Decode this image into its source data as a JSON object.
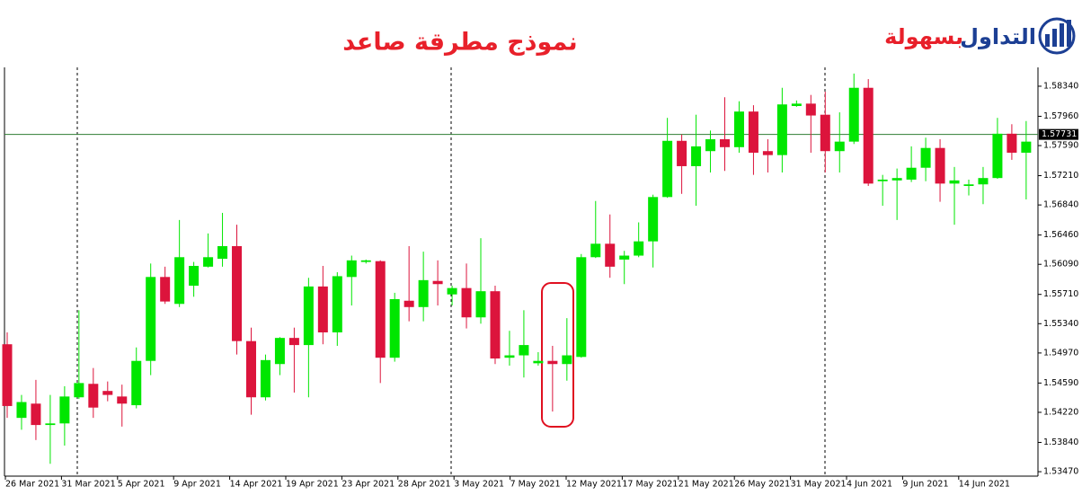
{
  "chart_data": {
    "type": "candlestick",
    "title": "نموذج مطرقة صاعد",
    "logo": {
      "part1": "التداول",
      "part2": "بسهولة"
    },
    "categories": [
      "26 Mar 2021",
      "31 Mar 2021",
      "5 Apr 2021",
      "9 Apr 2021",
      "14 Apr 2021",
      "19 Apr 2021",
      "23 Apr 2021",
      "28 Apr 2021",
      "3 May 2021",
      "7 May 2021",
      "12 May 2021",
      "17 May 2021",
      "21 May 2021",
      "26 May 2021",
      "31 May 2021",
      "4 Jun 2021",
      "9 Jun 2021",
      "14 Jun 2021"
    ],
    "up_color": "#00e600",
    "down_color": "#dc143c",
    "open": [
      1.5508,
      1.5415,
      1.5433,
      1.5406,
      1.5408,
      1.5441,
      1.5458,
      1.5449,
      1.5442,
      1.5431,
      1.5487,
      1.5593,
      1.5559,
      1.5582,
      1.5606,
      1.5616,
      1.5632,
      1.5512,
      1.5441,
      1.5483,
      1.5516,
      1.5507,
      1.5581,
      1.5523,
      1.5593,
      1.5612,
      1.5613,
      1.5491,
      1.5563,
      1.5555,
      1.5588,
      1.5571,
      1.5579,
      1.5542,
      1.5575,
      1.5491,
      1.5494,
      1.5484,
      1.5487,
      1.5483,
      1.5492,
      1.5618,
      1.5635,
      1.5615,
      1.562,
      1.5638,
      1.5694,
      1.5765,
      1.5733,
      1.5752,
      1.5767,
      1.5757,
      1.5802,
      1.5752,
      1.5747,
      1.5809,
      1.5812,
      1.5798,
      1.5752,
      1.5764,
      1.5832,
      1.5714,
      1.5715,
      1.5716,
      1.5731,
      1.5756,
      1.5711,
      1.5708,
      1.571,
      1.5718,
      1.5774,
      1.575
    ],
    "high": [
      1.5523,
      1.5444,
      1.5463,
      1.5444,
      1.5455,
      1.5551,
      1.5478,
      1.5461,
      1.5457,
      1.5504,
      1.561,
      1.5606,
      1.5665,
      1.5612,
      1.5648,
      1.5674,
      1.5659,
      1.5529,
      1.5495,
      1.5517,
      1.5529,
      1.5592,
      1.5607,
      1.5599,
      1.562,
      1.5615,
      1.5614,
      1.5573,
      1.5632,
      1.5625,
      1.5614,
      1.5582,
      1.561,
      1.5642,
      1.5582,
      1.5525,
      1.5551,
      1.5498,
      1.5506,
      1.5541,
      1.5622,
      1.5689,
      1.5672,
      1.5626,
      1.5662,
      1.5697,
      1.5794,
      1.5773,
      1.5798,
      1.5778,
      1.582,
      1.5815,
      1.581,
      1.5767,
      1.5832,
      1.5816,
      1.5823,
      1.5827,
      1.5801,
      1.585,
      1.5843,
      1.5722,
      1.573,
      1.5758,
      1.5769,
      1.5767,
      1.5732,
      1.5716,
      1.5732,
      1.5794,
      1.5786,
      1.579
    ],
    "low": [
      1.5415,
      1.54,
      1.5387,
      1.5357,
      1.538,
      1.5439,
      1.5415,
      1.5436,
      1.5404,
      1.5427,
      1.5469,
      1.5559,
      1.5555,
      1.5568,
      1.5605,
      1.5606,
      1.5495,
      1.5419,
      1.5437,
      1.5469,
      1.5447,
      1.5441,
      1.5508,
      1.5506,
      1.5557,
      1.561,
      1.5459,
      1.5486,
      1.5537,
      1.5537,
      1.5557,
      1.5557,
      1.5528,
      1.5534,
      1.5483,
      1.5481,
      1.5466,
      1.5481,
      1.5423,
      1.5462,
      1.5491,
      1.5617,
      1.5592,
      1.5584,
      1.5618,
      1.5605,
      1.5693,
      1.5698,
      1.5683,
      1.5725,
      1.5727,
      1.575,
      1.5722,
      1.5725,
      1.5725,
      1.5808,
      1.575,
      1.5725,
      1.5725,
      1.5761,
      1.5708,
      1.5683,
      1.5665,
      1.5713,
      1.5714,
      1.5688,
      1.5659,
      1.5696,
      1.5685,
      1.5717,
      1.5741,
      1.5691
    ],
    "close": [
      1.543,
      1.5435,
      1.5406,
      1.5408,
      1.5442,
      1.5459,
      1.5428,
      1.5444,
      1.5433,
      1.5487,
      1.5593,
      1.5562,
      1.5618,
      1.5607,
      1.5618,
      1.5632,
      1.5512,
      1.5441,
      1.5488,
      1.5516,
      1.5507,
      1.5581,
      1.5523,
      1.5594,
      1.5614,
      1.5614,
      1.5491,
      1.5565,
      1.5555,
      1.5589,
      1.5584,
      1.5579,
      1.5542,
      1.5575,
      1.549,
      1.5494,
      1.5507,
      1.5487,
      1.5483,
      1.5494,
      1.5618,
      1.5635,
      1.5606,
      1.562,
      1.5638,
      1.5694,
      1.5765,
      1.5733,
      1.5758,
      1.5767,
      1.5757,
      1.5802,
      1.575,
      1.5747,
      1.5811,
      1.5812,
      1.5797,
      1.5752,
      1.5764,
      1.5832,
      1.5711,
      1.5716,
      1.5718,
      1.5731,
      1.5756,
      1.5711,
      1.5715,
      1.571,
      1.5718,
      1.5774,
      1.575,
      1.5764
    ],
    "ylim": [
      1.53414,
      1.58578
    ],
    "yticks": [
      {
        "value": 1.5834,
        "label": "1.58340"
      },
      {
        "value": 1.5796,
        "label": "1.57960"
      },
      {
        "value": 1.5759,
        "label": "1.57590"
      },
      {
        "value": 1.5721,
        "label": "1.57210"
      },
      {
        "value": 1.5684,
        "label": "1.56840"
      },
      {
        "value": 1.5646,
        "label": "1.56460"
      },
      {
        "value": 1.5609,
        "label": "1.56090"
      },
      {
        "value": 1.5571,
        "label": "1.55710"
      },
      {
        "value": 1.5534,
        "label": "1.55340"
      },
      {
        "value": 1.5497,
        "label": "1.54970"
      },
      {
        "value": 1.5459,
        "label": "1.54590"
      },
      {
        "value": 1.5422,
        "label": "1.54220"
      },
      {
        "value": 1.5384,
        "label": "1.53840"
      },
      {
        "value": 1.5347,
        "label": "1.53470"
      }
    ],
    "price_line": 1.57731
  }
}
